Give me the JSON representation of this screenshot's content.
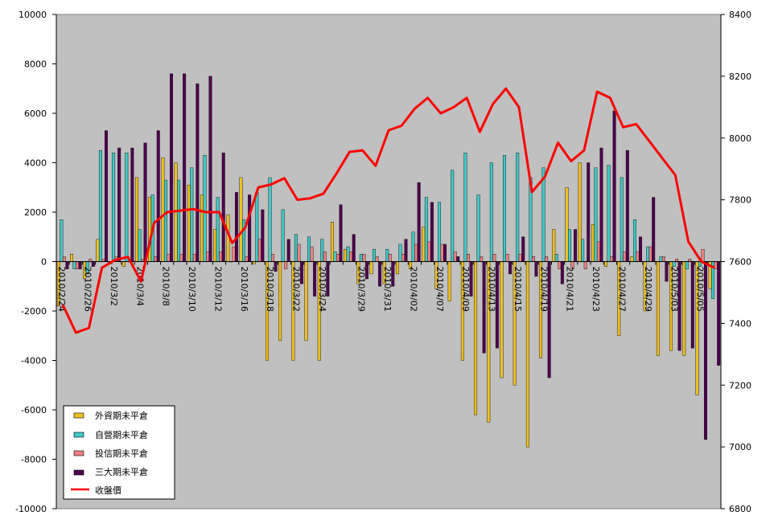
{
  "chart_data": {
    "type": "bar",
    "categories": [
      "2010/2/24",
      "2010/2/25",
      "2010/2/26",
      "2010/3/1",
      "2010/3/2",
      "2010/3/3",
      "2010/3/4",
      "2010/3/5",
      "2010/3/8",
      "2010/3/9",
      "2010/3/10",
      "2010/3/11",
      "2010/3/12",
      "2010/3/15",
      "2010/3/16",
      "2010/3/17",
      "2010/3/18",
      "2010/3/19",
      "2010/3/22",
      "2010/3/23",
      "2010/3/24",
      "2010/3/25",
      "2010/3/26",
      "2010/3/29",
      "2010/3/30",
      "2010/3/31",
      "2010/4/1",
      "2010/4/2",
      "2010/4/6",
      "2010/4/7",
      "2010/4/8",
      "2010/4/9",
      "2010/4/12",
      "2010/4/13",
      "2010/4/14",
      "2010/4/15",
      "2010/4/16",
      "2010/4/19",
      "2010/4/20",
      "2010/4/21",
      "2010/4/22",
      "2010/4/23",
      "2010/4/26",
      "2010/4/27",
      "2010/4/28",
      "2010/4/29",
      "2010/4/30",
      "2010/5/3",
      "2010/5/4",
      "2010/5/5",
      "2010/5/6"
    ],
    "tick_labels": [
      "2010/2/24",
      "2010/2/26",
      "2010/3/2",
      "2010/3/4",
      "2010/3/8",
      "2010/3/10",
      "2010/3/12",
      "2010/3/16",
      "2010/3/18",
      "2010/3/22",
      "2010/3/24",
      "2010/3/29",
      "2010/3/31",
      "2010/4/02",
      "2010/4/07",
      "2010/4/09",
      "2010/4/13",
      "2010/4/15",
      "2010/4/19",
      "2010/4/21",
      "2010/4/23",
      "2010/4/27",
      "2010/4/29",
      "2010/5/03",
      "2010/5/05"
    ],
    "series": [
      {
        "name": "外資期未平倉",
        "color": "#f0c020",
        "values": [
          -1800,
          300,
          -700,
          900,
          -100,
          -200,
          3400,
          2600,
          4200,
          4000,
          3100,
          2700,
          1300,
          1900,
          3400,
          -100,
          -4000,
          -3200,
          -4000,
          -3200,
          -4000,
          1600,
          500,
          -900,
          -500,
          -900,
          -500,
          -300,
          1400,
          -1100,
          -1600,
          -4000,
          -6200,
          -6500,
          -4700,
          -5000,
          -7500,
          -3900,
          1300,
          3000,
          4000,
          1500,
          -200,
          -3000,
          200,
          -2000,
          -3800,
          -3600,
          -3800,
          -5400,
          -1100
        ]
      },
      {
        "name": "自營期未平倉",
        "color": "#40c8c8",
        "values": [
          1700,
          -300,
          -500,
          4500,
          4400,
          4400,
          1300,
          2700,
          3300,
          3300,
          3800,
          4300,
          2600,
          0,
          1700,
          2800,
          3400,
          2100,
          1100,
          1000,
          900,
          400,
          600,
          300,
          500,
          500,
          700,
          1200,
          2600,
          2400,
          3700,
          4400,
          2700,
          4000,
          4300,
          4400,
          3400,
          3800,
          300,
          1300,
          900,
          3800,
          3900,
          3400,
          1700,
          600,
          200,
          -200,
          -300,
          -200,
          -1500
        ]
      },
      {
        "name": "投信期未平倉",
        "color": "#f08080",
        "values": [
          200,
          -300,
          100,
          100,
          200,
          0,
          100,
          200,
          300,
          300,
          300,
          400,
          400,
          600,
          200,
          900,
          300,
          -300,
          700,
          600,
          400,
          300,
          400,
          300,
          200,
          300,
          300,
          700,
          800,
          700,
          400,
          300,
          200,
          300,
          300,
          300,
          200,
          200,
          -300,
          -300,
          -300,
          800,
          200,
          400,
          400,
          600,
          200,
          100,
          100,
          500,
          -300
        ]
      },
      {
        "name": "三大期未平倉",
        "color": "#500050",
        "values": [
          -300,
          -300,
          -200,
          5300,
          4600,
          4600,
          4800,
          5300,
          7600,
          7600,
          7200,
          7500,
          4400,
          2800,
          2700,
          2100,
          -400,
          900,
          -900,
          -1400,
          -1400,
          2300,
          1100,
          -700,
          -1000,
          -1000,
          900,
          3200,
          2400,
          700,
          200,
          -1400,
          -3700,
          -3500,
          -500,
          1000,
          -600,
          -4700,
          -900,
          1300,
          4000,
          4600,
          6100,
          4500,
          1000,
          2600,
          -800,
          -3600,
          -3500,
          -7200,
          -4200
        ]
      },
      {
        "name": "收盤價",
        "color": "#ff0000",
        "type": "line",
        "axis": "right",
        "values": [
          7460,
          7370,
          7385,
          7580,
          7605,
          7615,
          7535,
          7725,
          7760,
          7765,
          7770,
          7760,
          7760,
          7660,
          7710,
          7840,
          7850,
          7870,
          7800,
          7805,
          7820,
          7885,
          7955,
          7960,
          7910,
          8025,
          8040,
          8095,
          8130,
          8080,
          8100,
          8130,
          8020,
          8110,
          8160,
          8100,
          7825,
          7875,
          7985,
          7925,
          7960,
          8150,
          8130,
          8035,
          8045,
          7990,
          7935,
          7880,
          7665,
          7600,
          7580
        ]
      }
    ],
    "ylim_left": [
      -10000,
      10000
    ],
    "ylim_right": [
      6800,
      8400
    ],
    "yticks_left": [
      -10000,
      -8000,
      -6000,
      -4000,
      -2000,
      0,
      2000,
      4000,
      6000,
      8000,
      10000
    ],
    "yticks_right": [
      6800,
      7000,
      7200,
      7400,
      7600,
      7800,
      8000,
      8200,
      8400
    ],
    "legend_position": "bottom-left",
    "grid": false
  }
}
